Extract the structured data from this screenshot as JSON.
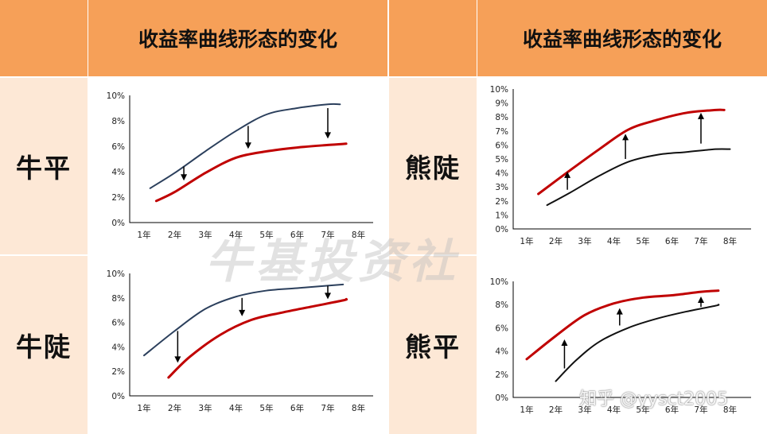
{
  "header": {
    "left_title": "收益率曲线形态的变化",
    "right_title": "收益率曲线形态的变化"
  },
  "rows": {
    "r1_left": "牛平",
    "r1_right": "熊陡",
    "r2_left": "牛陡",
    "r2_right": "熊平"
  },
  "watermark": {
    "text": "牛基投资社",
    "credit": "知乎 @yysct2005"
  },
  "colors": {
    "header_bg": "#f6a058",
    "label_bg": "#fde8d6",
    "before_curve_navy": "#2b3f5c",
    "before_curve_black": "#111111",
    "after_curve_red": "#c00000"
  },
  "chart_data": [
    {
      "type": "line",
      "x": [
        "1年",
        "2年",
        "3年",
        "4年",
        "5年",
        "6年",
        "7年",
        "8年"
      ],
      "yticks": [
        "0%",
        "2%",
        "4%",
        "6%",
        "8%",
        "10%"
      ],
      "ylim": [
        0,
        10
      ],
      "series": [
        {
          "color": "navy",
          "points": [
            [
              1.2,
              2.7
            ],
            [
              2,
              3.9
            ],
            [
              3,
              5.6
            ],
            [
              4,
              7.2
            ],
            [
              5,
              8.5
            ],
            [
              6,
              9.0
            ],
            [
              7,
              9.3
            ],
            [
              7.4,
              9.3
            ]
          ]
        },
        {
          "color": "red",
          "points": [
            [
              1.4,
              1.7
            ],
            [
              2,
              2.4
            ],
            [
              3,
              3.9
            ],
            [
              4,
              5.1
            ],
            [
              5,
              5.6
            ],
            [
              6,
              5.9
            ],
            [
              7,
              6.1
            ],
            [
              7.6,
              6.2
            ]
          ]
        }
      ],
      "arrows": [
        {
          "x": 2.3,
          "from": 4.4,
          "to": 3.3,
          "dir": "down"
        },
        {
          "x": 4.4,
          "from": 7.6,
          "to": 5.8,
          "dir": "down"
        },
        {
          "x": 7.0,
          "from": 9.0,
          "to": 6.6,
          "dir": "down"
        }
      ]
    },
    {
      "type": "line",
      "x": [
        "1年",
        "2年",
        "3年",
        "4年",
        "5年",
        "6年",
        "7年",
        "8年"
      ],
      "yticks": [
        "0%",
        "1%",
        "2%",
        "3%",
        "4%",
        "5%",
        "6%",
        "7%",
        "8%",
        "9%",
        "10%"
      ],
      "ylim": [
        0,
        10
      ],
      "series": [
        {
          "color": "black",
          "points": [
            [
              1.7,
              1.7
            ],
            [
              2.5,
              2.6
            ],
            [
              3.5,
              3.8
            ],
            [
              4.5,
              4.8
            ],
            [
              5.5,
              5.3
            ],
            [
              6.5,
              5.5
            ],
            [
              7.5,
              5.7
            ],
            [
              8,
              5.7
            ]
          ]
        },
        {
          "color": "red",
          "points": [
            [
              1.4,
              2.5
            ],
            [
              2.5,
              4.2
            ],
            [
              3.5,
              5.7
            ],
            [
              4.5,
              7.1
            ],
            [
              5.5,
              7.8
            ],
            [
              6.5,
              8.3
            ],
            [
              7.5,
              8.5
            ],
            [
              7.8,
              8.5
            ]
          ]
        }
      ],
      "arrows": [
        {
          "x": 2.4,
          "from": 2.8,
          "to": 4.1,
          "dir": "up"
        },
        {
          "x": 4.4,
          "from": 5.0,
          "to": 6.8,
          "dir": "up"
        },
        {
          "x": 7.0,
          "from": 6.1,
          "to": 8.3,
          "dir": "up"
        }
      ]
    },
    {
      "type": "line",
      "x": [
        "1年",
        "2年",
        "3年",
        "4年",
        "5年",
        "6年",
        "7年",
        "8年"
      ],
      "yticks": [
        "0%",
        "2%",
        "4%",
        "6%",
        "8%",
        "10%"
      ],
      "ylim": [
        0,
        10
      ],
      "series": [
        {
          "color": "navy",
          "points": [
            [
              1,
              3.3
            ],
            [
              2,
              5.3
            ],
            [
              3,
              7.1
            ],
            [
              4,
              8.1
            ],
            [
              5,
              8.6
            ],
            [
              6,
              8.8
            ],
            [
              7,
              9.0
            ],
            [
              7.5,
              9.1
            ]
          ]
        },
        {
          "color": "red",
          "points": [
            [
              1.8,
              1.5
            ],
            [
              2.5,
              3.2
            ],
            [
              3.5,
              5.0
            ],
            [
              4.5,
              6.2
            ],
            [
              5.5,
              6.8
            ],
            [
              6.5,
              7.3
            ],
            [
              7.5,
              7.8
            ],
            [
              7.6,
              7.9
            ]
          ]
        }
      ],
      "arrows": [
        {
          "x": 2.1,
          "from": 5.3,
          "to": 2.7,
          "dir": "down"
        },
        {
          "x": 4.2,
          "from": 8.0,
          "to": 6.5,
          "dir": "down"
        },
        {
          "x": 7.0,
          "from": 9.0,
          "to": 7.9,
          "dir": "down"
        }
      ]
    },
    {
      "type": "line",
      "x": [
        "1年",
        "2年",
        "3年",
        "4年",
        "5年",
        "6年",
        "7年",
        "8年"
      ],
      "yticks": [
        "0%",
        "2%",
        "4%",
        "6%",
        "8%",
        "10%"
      ],
      "ylim": [
        0,
        10
      ],
      "series": [
        {
          "color": "black",
          "points": [
            [
              2,
              1.4
            ],
            [
              2.7,
              3.2
            ],
            [
              3.5,
              4.8
            ],
            [
              4.5,
              6.0
            ],
            [
              5.5,
              6.8
            ],
            [
              6.5,
              7.4
            ],
            [
              7.5,
              7.9
            ],
            [
              7.6,
              8.0
            ]
          ]
        },
        {
          "color": "red",
          "points": [
            [
              1,
              3.3
            ],
            [
              2,
              5.3
            ],
            [
              3,
              7.1
            ],
            [
              4,
              8.1
            ],
            [
              5,
              8.6
            ],
            [
              6,
              8.8
            ],
            [
              7,
              9.1
            ],
            [
              7.6,
              9.2
            ]
          ]
        }
      ],
      "arrows": [
        {
          "x": 2.3,
          "from": 2.5,
          "to": 5.0,
          "dir": "up"
        },
        {
          "x": 4.2,
          "from": 6.2,
          "to": 7.7,
          "dir": "up"
        },
        {
          "x": 7.0,
          "from": 7.8,
          "to": 8.7,
          "dir": "up"
        }
      ]
    }
  ]
}
